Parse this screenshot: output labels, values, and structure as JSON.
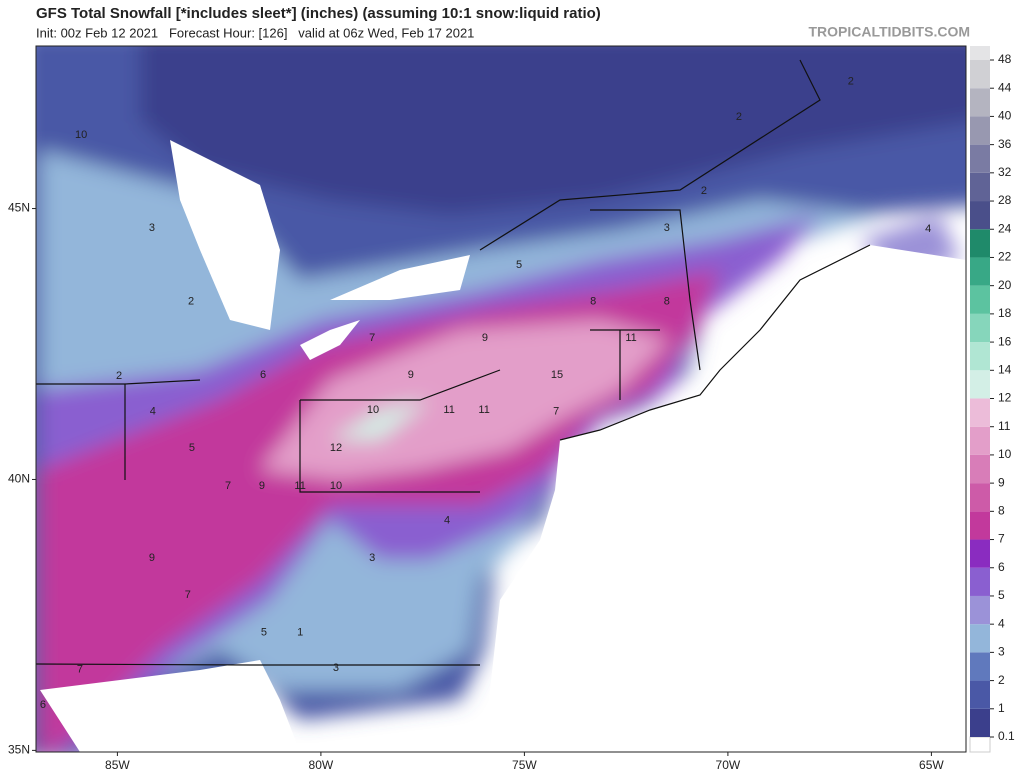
{
  "header": {
    "title": "GFS Total Snowfall [*includes sleet*] (inches) (assuming 10:1 snow:liquid ratio)",
    "subtitle": "Init: 00z Feb 12 2021   Forecast Hour: [126]   valid at 06z Wed, Feb 17 2021",
    "watermark": "TROPICALTIDBITS.COM"
  },
  "map": {
    "extent": {
      "lon": [
        -87,
        -64.15
      ],
      "lat": [
        34.97,
        48
      ]
    },
    "lat_ticks": [
      {
        "value": 45,
        "label": "45N"
      },
      {
        "value": 40,
        "label": "40N"
      },
      {
        "value": 35,
        "label": "35N"
      }
    ],
    "lon_ticks": [
      {
        "value": -85,
        "label": "85W"
      },
      {
        "value": -80,
        "label": "80W"
      },
      {
        "value": -75,
        "label": "75W"
      },
      {
        "value": -70,
        "label": "70W"
      },
      {
        "value": -65,
        "label": "65W"
      }
    ],
    "labels": [
      {
        "value": 10,
        "lon": -85.89,
        "lat": 46.36
      },
      {
        "value": 3,
        "lon": -84.15,
        "lat": 44.64
      },
      {
        "value": 2,
        "lon": -83.19,
        "lat": 43.28
      },
      {
        "value": 2,
        "lon": -84.96,
        "lat": 41.91
      },
      {
        "value": 4,
        "lon": -84.13,
        "lat": 41.25
      },
      {
        "value": 5,
        "lon": -83.17,
        "lat": 40.58
      },
      {
        "value": 7,
        "lon": -82.28,
        "lat": 39.88
      },
      {
        "value": 9,
        "lon": -81.45,
        "lat": 39.88
      },
      {
        "value": 11,
        "lon": -80.51,
        "lat": 39.88
      },
      {
        "value": 12,
        "lon": -79.63,
        "lat": 40.58
      },
      {
        "value": 10,
        "lon": -78.72,
        "lat": 41.28
      },
      {
        "value": 11,
        "lon": -76.85,
        "lat": 41.28
      },
      {
        "value": 11,
        "lon": -75.99,
        "lat": 41.28
      },
      {
        "value": 15,
        "lon": -74.2,
        "lat": 41.93
      },
      {
        "value": 9,
        "lon": -77.79,
        "lat": 41.93
      },
      {
        "value": 7,
        "lon": -78.74,
        "lat": 42.61
      },
      {
        "value": 9,
        "lon": -75.97,
        "lat": 42.61
      },
      {
        "value": 11,
        "lon": -72.38,
        "lat": 42.61
      },
      {
        "value": 8,
        "lon": -73.31,
        "lat": 43.28
      },
      {
        "value": 8,
        "lon": -71.5,
        "lat": 43.28
      },
      {
        "value": 5,
        "lon": -75.13,
        "lat": 43.96
      },
      {
        "value": 3,
        "lon": -71.5,
        "lat": 44.64
      },
      {
        "value": 2,
        "lon": -70.59,
        "lat": 45.32
      },
      {
        "value": 2,
        "lon": -69.73,
        "lat": 46.69
      },
      {
        "value": 2,
        "lon": -66.98,
        "lat": 47.34
      },
      {
        "value": 4,
        "lon": -65.08,
        "lat": 44.62
      },
      {
        "value": 9,
        "lon": -84.15,
        "lat": 38.55
      },
      {
        "value": 7,
        "lon": -83.27,
        "lat": 37.87
      },
      {
        "value": 5,
        "lon": -81.4,
        "lat": 37.17
      },
      {
        "value": 1,
        "lon": -80.51,
        "lat": 37.17
      },
      {
        "value": 3,
        "lon": -79.63,
        "lat": 36.52
      },
      {
        "value": 3,
        "lon": -78.74,
        "lat": 38.55
      },
      {
        "value": 4,
        "lon": -76.9,
        "lat": 39.24
      },
      {
        "value": 6,
        "lon": -86.83,
        "lat": 35.84
      },
      {
        "value": 7,
        "lon": -85.92,
        "lat": 36.49
      },
      {
        "value": 7,
        "lon": -74.22,
        "lat": 41.25
      },
      {
        "value": 6,
        "lon": -81.42,
        "lat": 41.93
      },
      {
        "value": 10,
        "lon": -79.63,
        "lat": 39.88
      }
    ]
  },
  "colorbar": {
    "ticks": [
      0.1,
      1,
      2,
      3,
      4,
      5,
      6,
      7,
      8,
      9,
      10,
      11,
      12,
      14,
      16,
      18,
      20,
      22,
      24,
      28,
      32,
      36,
      40,
      44,
      48
    ],
    "colors": [
      "#3b3f8c",
      "#4a58a6",
      "#6079bd",
      "#93b6da",
      "#9b92d8",
      "#8a5fd0",
      "#8a2cc0",
      "#c2399c",
      "#cd5ba8",
      "#d87db8",
      "#e39ec9",
      "#ecbcd9",
      "#d3efe6",
      "#b0e6d3",
      "#86d6bb",
      "#5cc3a0",
      "#38a886",
      "#1f8a6a",
      "#4a4f8a",
      "#606396",
      "#7a7ba3",
      "#9898b0",
      "#b4b4c0",
      "#d0d0d4"
    ]
  }
}
